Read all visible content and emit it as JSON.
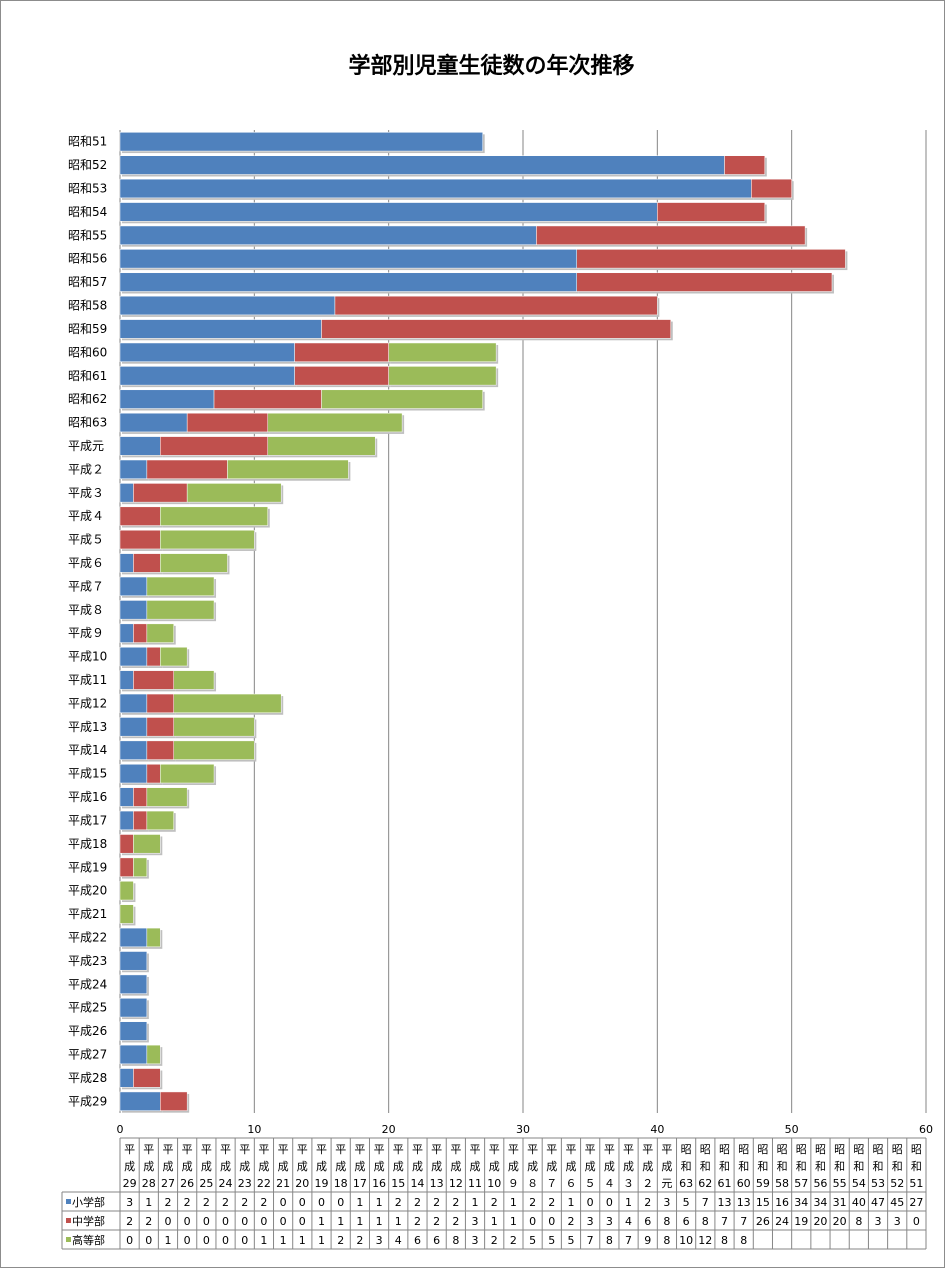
{
  "chart_data": {
    "type": "bar",
    "orientation": "horizontal",
    "stacked": true,
    "title": "学部別児童生徒数の年次推移",
    "categories": [
      "昭和51",
      "昭和52",
      "昭和53",
      "昭和54",
      "昭和55",
      "昭和56",
      "昭和57",
      "昭和58",
      "昭和59",
      "昭和60",
      "昭和61",
      "昭和62",
      "昭和63",
      "平成元",
      "平成２",
      "平成３",
      "平成４",
      "平成５",
      "平成６",
      "平成７",
      "平成８",
      "平成９",
      "平成10",
      "平成11",
      "平成12",
      "平成13",
      "平成14",
      "平成15",
      "平成16",
      "平成17",
      "平成18",
      "平成19",
      "平成20",
      "平成21",
      "平成22",
      "平成23",
      "平成24",
      "平成25",
      "平成26",
      "平成27",
      "平成28",
      "平成29"
    ],
    "series": [
      {
        "name": "小学部",
        "color": "#4f81bd",
        "values": [
          27,
          45,
          47,
          40,
          31,
          34,
          34,
          16,
          15,
          13,
          13,
          7,
          5,
          3,
          2,
          1,
          0,
          0,
          1,
          2,
          2,
          1,
          2,
          1,
          2,
          2,
          2,
          2,
          1,
          1,
          0,
          0,
          0,
          0,
          2,
          2,
          2,
          2,
          2,
          2,
          1,
          3
        ]
      },
      {
        "name": "中学部",
        "color": "#c0504d",
        "values": [
          0,
          3,
          3,
          8,
          20,
          20,
          19,
          24,
          26,
          7,
          7,
          8,
          6,
          8,
          6,
          4,
          3,
          3,
          2,
          0,
          0,
          1,
          1,
          3,
          2,
          2,
          2,
          1,
          1,
          1,
          1,
          1,
          0,
          0,
          0,
          0,
          0,
          0,
          0,
          0,
          2,
          2
        ]
      },
      {
        "name": "高等部",
        "color": "#9bbb59",
        "values": [
          null,
          null,
          null,
          null,
          null,
          null,
          null,
          null,
          null,
          8,
          8,
          12,
          10,
          8,
          9,
          7,
          8,
          7,
          5,
          5,
          5,
          2,
          2,
          3,
          8,
          6,
          6,
          4,
          3,
          2,
          2,
          1,
          1,
          1,
          1,
          0,
          0,
          0,
          0,
          1,
          0,
          0
        ]
      }
    ],
    "xlim": [
      0,
      60
    ],
    "xticks": [
      "0",
      "10",
      "20",
      "30",
      "40",
      "50",
      "60"
    ],
    "grid": true,
    "legend": "table-below"
  },
  "table": {
    "columns": [
      [
        "平",
        "成",
        "29"
      ],
      [
        "平",
        "成",
        "28"
      ],
      [
        "平",
        "成",
        "27"
      ],
      [
        "平",
        "成",
        "26"
      ],
      [
        "平",
        "成",
        "25"
      ],
      [
        "平",
        "成",
        "24"
      ],
      [
        "平",
        "成",
        "23"
      ],
      [
        "平",
        "成",
        "22"
      ],
      [
        "平",
        "成",
        "21"
      ],
      [
        "平",
        "成",
        "20"
      ],
      [
        "平",
        "成",
        "19"
      ],
      [
        "平",
        "成",
        "18"
      ],
      [
        "平",
        "成",
        "17"
      ],
      [
        "平",
        "成",
        "16"
      ],
      [
        "平",
        "成",
        "15"
      ],
      [
        "平",
        "成",
        "14"
      ],
      [
        "平",
        "成",
        "13"
      ],
      [
        "平",
        "成",
        "12"
      ],
      [
        "平",
        "成",
        "11"
      ],
      [
        "平",
        "成",
        "10"
      ],
      [
        "平",
        "成",
        "９"
      ],
      [
        "平",
        "成",
        "８"
      ],
      [
        "平",
        "成",
        "７"
      ],
      [
        "平",
        "成",
        "６"
      ],
      [
        "平",
        "成",
        "５"
      ],
      [
        "平",
        "成",
        "４"
      ],
      [
        "平",
        "成",
        "３"
      ],
      [
        "平",
        "成",
        "２"
      ],
      [
        "平",
        "成",
        "元"
      ],
      [
        "昭",
        "和",
        "63"
      ],
      [
        "昭",
        "和",
        "62"
      ],
      [
        "昭",
        "和",
        "61"
      ],
      [
        "昭",
        "和",
        "60"
      ],
      [
        "昭",
        "和",
        "59"
      ],
      [
        "昭",
        "和",
        "58"
      ],
      [
        "昭",
        "和",
        "57"
      ],
      [
        "昭",
        "和",
        "56"
      ],
      [
        "昭",
        "和",
        "55"
      ],
      [
        "昭",
        "和",
        "54"
      ],
      [
        "昭",
        "和",
        "53"
      ],
      [
        "昭",
        "和",
        "52"
      ],
      [
        "昭",
        "和",
        "51"
      ]
    ],
    "rows": [
      {
        "label": "小学部",
        "cells": [
          "3",
          "1",
          "2",
          "2",
          "2",
          "2",
          "2",
          "2",
          "0",
          "0",
          "0",
          "0",
          "1",
          "1",
          "2",
          "2",
          "2",
          "2",
          "1",
          "2",
          "1",
          "2",
          "2",
          "1",
          "0",
          "0",
          "1",
          "2",
          "3",
          "5",
          "7",
          "13",
          "13",
          "15",
          "16",
          "34",
          "34",
          "31",
          "40",
          "47",
          "45",
          "27"
        ]
      },
      {
        "label": "中学部",
        "cells": [
          "2",
          "2",
          "0",
          "0",
          "0",
          "0",
          "0",
          "0",
          "0",
          "0",
          "1",
          "1",
          "1",
          "1",
          "1",
          "2",
          "2",
          "2",
          "3",
          "1",
          "1",
          "0",
          "0",
          "2",
          "3",
          "3",
          "4",
          "6",
          "8",
          "6",
          "8",
          "7",
          "7",
          "26",
          "24",
          "19",
          "20",
          "20",
          "8",
          "3",
          "3",
          "0"
        ]
      },
      {
        "label": "高等部",
        "cells": [
          "0",
          "0",
          "1",
          "0",
          "0",
          "0",
          "0",
          "1",
          "1",
          "1",
          "1",
          "2",
          "2",
          "3",
          "4",
          "6",
          "6",
          "8",
          "3",
          "2",
          "2",
          "5",
          "5",
          "5",
          "7",
          "8",
          "7",
          "9",
          "8",
          "10",
          "12",
          "8",
          "8",
          "",
          "",
          "",
          "",
          "",
          "",
          "",
          "",
          ""
        ]
      }
    ]
  }
}
